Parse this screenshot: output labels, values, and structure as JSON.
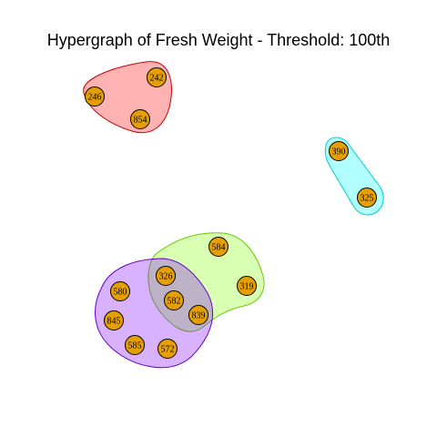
{
  "title": "Hypergraph of Fresh Weight - Threshold: 100th",
  "node_fill": "#e69f00",
  "node_stroke": "#000000",
  "nodes": [
    {
      "id": "n246",
      "label": "246"
    },
    {
      "id": "n242",
      "label": "242"
    },
    {
      "id": "n854",
      "label": "854"
    },
    {
      "id": "n390",
      "label": "390"
    },
    {
      "id": "n325",
      "label": "325"
    },
    {
      "id": "n584",
      "label": "584"
    },
    {
      "id": "n319",
      "label": "319"
    },
    {
      "id": "n326",
      "label": "326"
    },
    {
      "id": "n580",
      "label": "580"
    },
    {
      "id": "n582",
      "label": "582"
    },
    {
      "id": "n839",
      "label": "839"
    },
    {
      "id": "n845",
      "label": "845"
    },
    {
      "id": "n585",
      "label": "585"
    },
    {
      "id": "n572",
      "label": "572"
    }
  ],
  "hyperedges": [
    {
      "id": "red-group",
      "fill": "#ff0000",
      "stroke": "#cc0000",
      "members": [
        "246",
        "242",
        "854"
      ]
    },
    {
      "id": "cyan-group",
      "fill": "#00ffff",
      "stroke": "#00cccc",
      "members": [
        "390",
        "325"
      ]
    },
    {
      "id": "green-group",
      "fill": "#80ff00",
      "stroke": "#66cc00",
      "members": [
        "584",
        "319",
        "326",
        "582",
        "839"
      ]
    },
    {
      "id": "purple-group",
      "fill": "#8000ff",
      "stroke": "#6600cc",
      "members": [
        "326",
        "580",
        "582",
        "839",
        "845",
        "585",
        "572"
      ]
    }
  ]
}
